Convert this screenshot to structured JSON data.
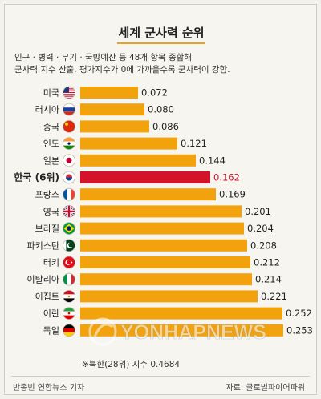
{
  "chart_data": {
    "type": "bar",
    "orientation": "horizontal",
    "title": "세계 군사력 순위",
    "description_lines": [
      "인구 · 병력 · 무기 · 국방예산 등 48개 항목 종합해",
      "군사력 지수 산출. 평가지수가 0에 가까울수록 군사력이 강함."
    ],
    "categories": [
      "미국",
      "러시아",
      "중국",
      "인도",
      "일본",
      "한국 (6위)",
      "프랑스",
      "영국",
      "브라질",
      "파키스탄",
      "터키",
      "이탈리아",
      "이집트",
      "이란",
      "독일"
    ],
    "values": [
      0.072,
      0.08,
      0.086,
      0.121,
      0.144,
      0.162,
      0.169,
      0.201,
      0.204,
      0.208,
      0.212,
      0.214,
      0.221,
      0.252,
      0.253
    ],
    "value_labels": [
      "0.072",
      "0.080",
      "0.086",
      "0.121",
      "0.144",
      "0.162",
      "0.169",
      "0.201",
      "0.204",
      "0.208",
      "0.212",
      "0.214",
      "0.221",
      "0.252",
      "0.253"
    ],
    "flags": [
      "us-flag-icon",
      "russia-flag-icon",
      "china-flag-icon",
      "india-flag-icon",
      "japan-flag-icon",
      "korea-flag-icon",
      "france-flag-icon",
      "uk-flag-icon",
      "brazil-flag-icon",
      "pakistan-flag-icon",
      "turkey-flag-icon",
      "italy-flag-icon",
      "egypt-flag-icon",
      "iran-flag-icon",
      "germany-flag-icon"
    ],
    "highlight_index": 5,
    "colors": {
      "bar": "#f2a20c",
      "highlight": "#d4122a",
      "highlight_text": "#d4122a"
    },
    "note": "※북한(28위) 지수 0.4684"
  },
  "footer": {
    "byline": "반종빈  연합뉴스  기자",
    "source": "자료: 글로벌파이어파워"
  },
  "watermark": "YONHAPNEWS"
}
